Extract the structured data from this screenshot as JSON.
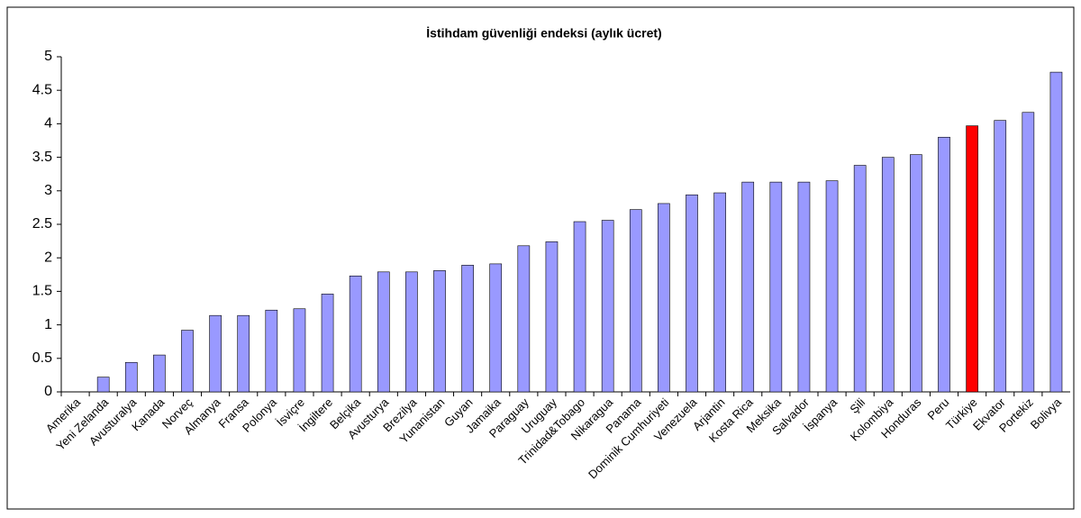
{
  "chart_data": {
    "type": "bar",
    "title": "İstihdam güvenliği endeksi (aylık ücret)",
    "categories": [
      "Amerika",
      "Yeni Zelanda",
      "Avusturalya",
      "Kanada",
      "Norveç",
      "Almanya",
      "Fransa",
      "Polonya",
      "İsviçre",
      "İngiltere",
      "Belçika",
      "Avusturya",
      "Brezilya",
      "Yunanistan",
      "Guyan",
      "Jamaika",
      "Paraguay",
      "Uruguay",
      "Trinidad&Tobago",
      "Nikaragua",
      "Panama",
      "Dominik Cumhuriyeti",
      "Venezuela",
      "Arjantin",
      "Kosta Rica",
      "Meksika",
      "Salvador",
      "İspanya",
      "Şili",
      "Kolombiya",
      "Honduras",
      "Peru",
      "Türkiye",
      "Ekvator",
      "Portekiz",
      "Bolivya"
    ],
    "values": [
      0,
      0.22,
      0.44,
      0.55,
      0.92,
      1.14,
      1.14,
      1.22,
      1.24,
      1.46,
      1.73,
      1.79,
      1.79,
      1.81,
      1.89,
      1.91,
      2.18,
      2.24,
      2.54,
      2.56,
      2.72,
      2.81,
      2.94,
      2.97,
      3.13,
      3.13,
      3.13,
      3.15,
      3.38,
      3.5,
      3.54,
      3.8,
      3.97,
      4.05,
      4.17,
      4.77
    ],
    "colors": [
      "#9999ff",
      "#9999ff",
      "#9999ff",
      "#9999ff",
      "#9999ff",
      "#9999ff",
      "#9999ff",
      "#9999ff",
      "#9999ff",
      "#9999ff",
      "#9999ff",
      "#9999ff",
      "#9999ff",
      "#9999ff",
      "#9999ff",
      "#9999ff",
      "#9999ff",
      "#9999ff",
      "#9999ff",
      "#9999ff",
      "#9999ff",
      "#9999ff",
      "#9999ff",
      "#9999ff",
      "#9999ff",
      "#9999ff",
      "#9999ff",
      "#9999ff",
      "#9999ff",
      "#9999ff",
      "#9999ff",
      "#9999ff",
      "#ff0000",
      "#9999ff",
      "#9999ff",
      "#9999ff"
    ],
    "ylim": [
      0,
      5
    ],
    "yticks": [
      0,
      0.5,
      1,
      1.5,
      2,
      2.5,
      3,
      3.5,
      4,
      4.5,
      5
    ],
    "grid": false
  }
}
